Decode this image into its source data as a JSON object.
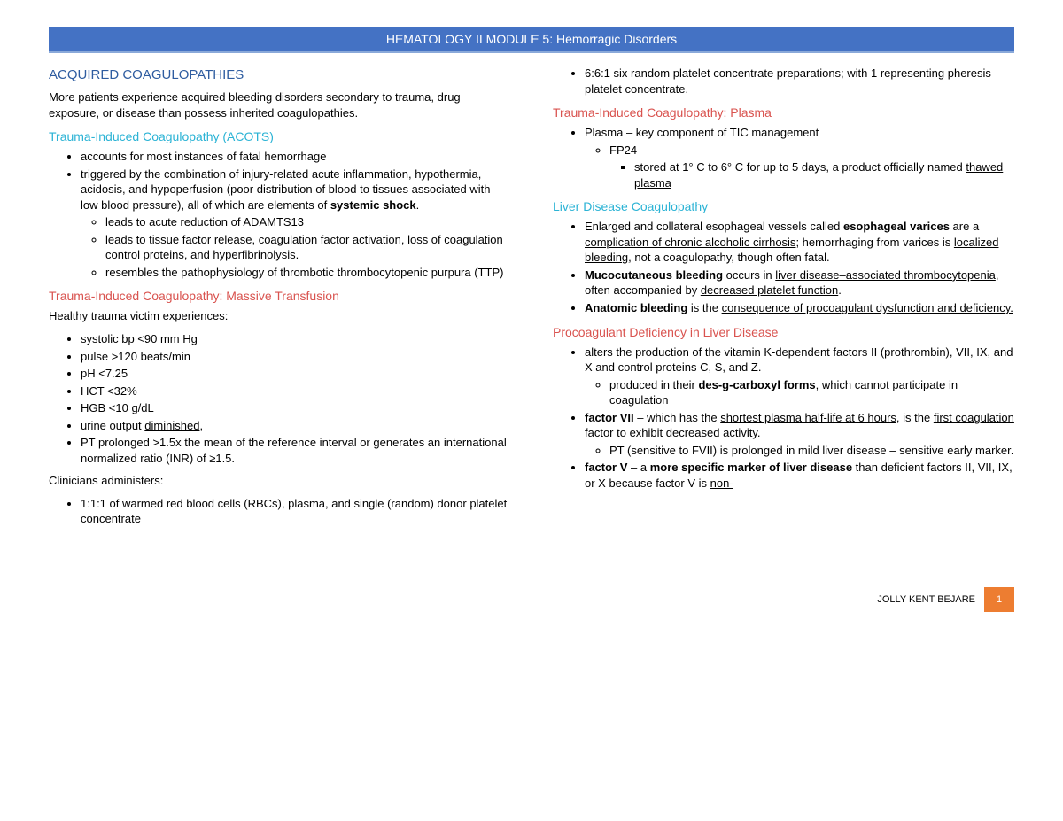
{
  "header": {
    "title": "HEMATOLOGY II MODULE 5: Hemorragic Disorders",
    "bg_color": "#4472c4",
    "text_color": "#ffffff"
  },
  "left": {
    "h1": "ACQUIRED COAGULOPATHIES",
    "p1": "More patients experience acquired bleeding disorders secondary to trauma, drug exposure, or disease than possess inherited coagulopathies.",
    "h2": "Trauma-Induced Coagulopathy (ACOTS)",
    "l1a": "accounts for most instances of fatal hemorrhage",
    "l1b_pre": "triggered by the combination of injury-related acute inflammation, hypothermia, acidosis, and hypoperfusion (poor distribution of blood to tissues associated with low blood pressure), all of which are elements of ",
    "l1b_bold": "systemic shock",
    "l1b_post": ".",
    "l1b_sub1": "leads to acute reduction of ADAMTS13",
    "l1b_sub2": "leads to tissue factor release, coagulation factor activation, loss of coagulation control proteins, and hyperfibrinolysis.",
    "l1b_sub3": "resembles the pathophysiology of thrombotic thrombocytopenic purpura (TTP)",
    "h3": "Trauma-Induced Coagulopathy: Massive Transfusion",
    "p2": "Healthy trauma victim experiences:",
    "l2a": "systolic bp <90 mm Hg",
    "l2b": "pulse >120 beats/min",
    "l2c": "pH <7.25",
    "l2d": "HCT <32%",
    "l2e": "HGB <10 g/dL",
    "l2f_pre": "urine output ",
    "l2f_u": "diminished",
    "l2f_post": ",",
    "l2g": "PT prolonged >1.5x the mean of the reference interval or generates an international normalized ratio (INR) of ≥1.5.",
    "p3": "Clinicians administers:",
    "l3a": "1:1:1 of warmed red blood cells (RBCs), plasma, and single (random) donor platelet concentrate"
  },
  "right": {
    "l0a": "6:6:1 six random platelet concentrate preparations; with 1 representing pheresis platelet concentrate.",
    "h1": "Trauma-Induced Coagulopathy: Plasma",
    "l1a": "Plasma – key component of TIC management",
    "l1a_sub1": "FP24",
    "l1a_sub1_sub_pre": "stored at 1° C to 6° C for up to 5 days, a product officially named ",
    "l1a_sub1_sub_u": "thawed plasma",
    "h2": "Liver Disease Coagulopathy",
    "l2a_pre": "Enlarged and collateral esophageal vessels called ",
    "l2a_b": "esophageal varices",
    "l2a_mid1": " are a ",
    "l2a_u1": "complication of chronic alcoholic cirrhosis",
    "l2a_mid2": "; hemorrhaging from varices is ",
    "l2a_u2": "localized bleeding",
    "l2a_post": ", not a coagulopathy, though often fatal.",
    "l2b_b": "Mucocutaneous bleeding",
    "l2b_mid1": " occurs in ",
    "l2b_u1": "liver disease–associated thrombocytopenia",
    "l2b_mid2": ", often accompanied by ",
    "l2b_u2": "decreased platelet function",
    "l2b_post": ".",
    "l2c_b": "Anatomic bleeding",
    "l2c_mid": " is the ",
    "l2c_u": "consequence of procoagulant dysfunction and deficiency.",
    "h3": "Procoagulant Deficiency in Liver Disease",
    "l3a": "alters the production of the vitamin K-dependent factors II (prothrombin), VII, IX, and X and control proteins C, S, and Z.",
    "l3a_sub_pre": "produced in their ",
    "l3a_sub_b": "des-g-carboxyl forms",
    "l3a_sub_post": ", which cannot participate in coagulation",
    "l3b_b": "factor VII",
    "l3b_mid1": " – which has the ",
    "l3b_u1": "shortest plasma half-life at 6 hours",
    "l3b_mid2": ", is the ",
    "l3b_u2": "first coagulation factor to exhibit decreased activity.",
    "l3b_sub": "PT (sensitive to FVII) is prolonged in mild liver disease – sensitive early marker.",
    "l3c_b1": "factor V",
    "l3c_mid1": " – a ",
    "l3c_b2": "more specific marker of liver disease",
    "l3c_mid2": " than deficient factors II, VII, IX, or X because factor V is ",
    "l3c_u": "non-"
  },
  "footer": {
    "name": "JOLLY KENT BEJARE",
    "page": "1",
    "badge_color": "#ed7d31"
  },
  "colors": {
    "h_blue": "#2e5ca0",
    "h_cyan": "#2bb3d5",
    "h_red": "#d9534f"
  }
}
